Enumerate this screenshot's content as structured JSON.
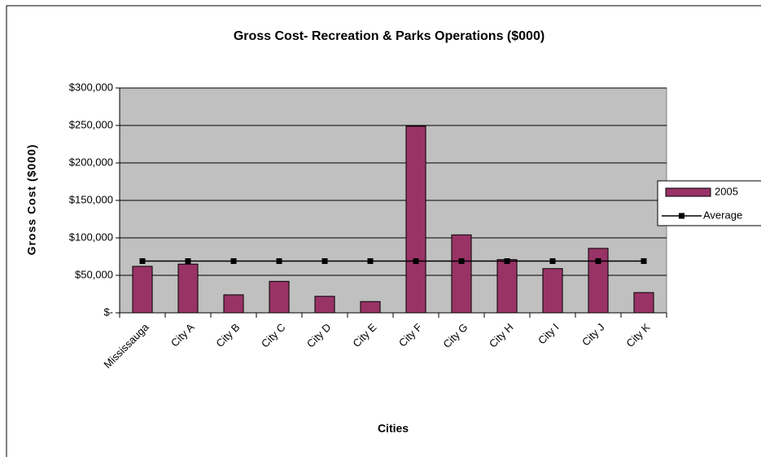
{
  "chart_data": {
    "type": "bar",
    "title": "Gross Cost- Recreation & Parks Operations ($000)",
    "x_label": "Cities",
    "y_label": "Gross Cost ($000)",
    "categories": [
      "Mississauga",
      "City A",
      "City B",
      "City C",
      "City D",
      "City E",
      "City F",
      "City G",
      "City H",
      "City I",
      "City J",
      "City K"
    ],
    "series": [
      {
        "name": "2005",
        "type": "bar",
        "color": "#993366",
        "values": [
          62000,
          65000,
          24000,
          42000,
          22000,
          15000,
          249000,
          104000,
          71000,
          59000,
          86000,
          27000
        ]
      },
      {
        "name": "Average",
        "type": "line",
        "color": "#000000",
        "values": [
          69000,
          69000,
          69000,
          69000,
          69000,
          69000,
          69000,
          69000,
          69000,
          69000,
          69000,
          69000
        ]
      }
    ],
    "ylim": [
      0,
      300000
    ],
    "yticks": [
      {
        "value": 0,
        "label": "$-"
      },
      {
        "value": 50000,
        "label": "$50,000"
      },
      {
        "value": 100000,
        "label": "$100,000"
      },
      {
        "value": 150000,
        "label": "$150,000"
      },
      {
        "value": 200000,
        "label": "$200,000"
      },
      {
        "value": 250000,
        "label": "$250,000"
      },
      {
        "value": 300000,
        "label": "$300,000"
      }
    ],
    "grid": true,
    "legend": "right",
    "plot_background": "#c0c0c0"
  }
}
